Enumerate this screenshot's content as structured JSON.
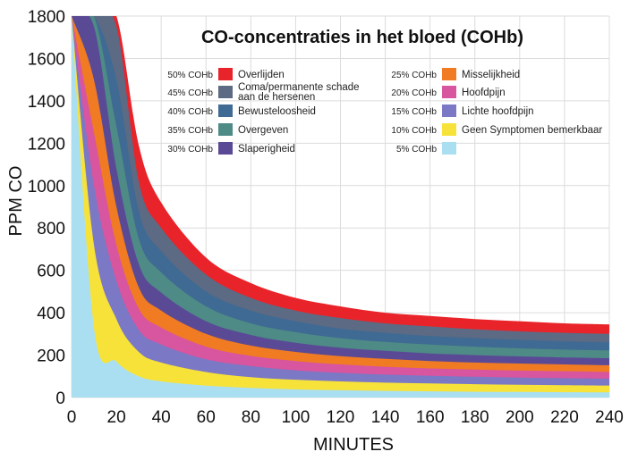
{
  "chart_data": {
    "type": "area",
    "title": "CO-concentraties in het bloed (COHb)",
    "xlabel": "MINUTES",
    "ylabel": "PPM CO",
    "xlim": [
      0,
      240
    ],
    "ylim": [
      0,
      1800
    ],
    "x_ticks": [
      0,
      20,
      40,
      60,
      80,
      100,
      120,
      140,
      160,
      180,
      200,
      220,
      240
    ],
    "y_ticks": [
      0,
      200,
      400,
      600,
      800,
      1000,
      1200,
      1400,
      1600,
      1800
    ],
    "grid": true,
    "legend_position": "top",
    "x": [
      0,
      10,
      20,
      30,
      40,
      60,
      80,
      100,
      120,
      140,
      160,
      180,
      200,
      220,
      240
    ],
    "series": [
      {
        "name": "Overlijden",
        "cohb": "50% COHb",
        "color": "#e8242a",
        "values": [
          1800,
          1800,
          1800,
          1190,
          920,
          660,
          540,
          470,
          430,
          400,
          385,
          370,
          360,
          350,
          345
        ]
      },
      {
        "name": "Coma/permanente schade aan de hersenen",
        "cohb": "45% COHb",
        "color": "#5c6a84",
        "values": [
          1800,
          1800,
          1750,
          1020,
          800,
          580,
          470,
          410,
          375,
          350,
          335,
          322,
          312,
          305,
          300
        ]
      },
      {
        "name": "Bewusteloosheid",
        "cohb": "40% COHb",
        "color": "#3f6a93",
        "values": [
          1800,
          1800,
          1500,
          880,
          690,
          500,
          410,
          360,
          325,
          305,
          290,
          280,
          272,
          265,
          260
        ]
      },
      {
        "name": "Overgeven",
        "cohb": "35% COHb",
        "color": "#4e8a86",
        "values": [
          1800,
          1800,
          1280,
          750,
          590,
          430,
          350,
          308,
          280,
          262,
          250,
          240,
          232,
          226,
          222
        ]
      },
      {
        "name": "Slaperigheid",
        "cohb": "30% COHb",
        "color": "#5a4a96",
        "values": [
          1800,
          1750,
          1080,
          630,
          495,
          360,
          295,
          258,
          235,
          220,
          208,
          200,
          194,
          189,
          185
        ]
      },
      {
        "name": "Misselijkheid",
        "cohb": "25% COHb",
        "color": "#f07b22",
        "values": [
          1800,
          1500,
          900,
          520,
          410,
          300,
          245,
          215,
          195,
          182,
          172,
          165,
          160,
          156,
          152
        ]
      },
      {
        "name": "Hoofdpijn",
        "cohb": "20% COHb",
        "color": "#d8559f",
        "values": [
          1800,
          1250,
          720,
          420,
          330,
          240,
          196,
          172,
          156,
          145,
          137,
          132,
          127,
          124,
          120
        ]
      },
      {
        "name": "Lichte hoofdpijn",
        "cohb": "15% COHb",
        "color": "#7b78c6",
        "values": [
          1800,
          1000,
          550,
          320,
          250,
          180,
          148,
          128,
          116,
          108,
          102,
          98,
          94,
          91,
          89
        ]
      },
      {
        "name": "Geen Symptomen bemerkbaar",
        "cohb": "10% COHb",
        "color": "#f7e23a",
        "values": [
          1800,
          720,
          370,
          215,
          165,
          120,
          96,
          84,
          76,
          70,
          66,
          63,
          60,
          58,
          56
        ]
      },
      {
        "name": "",
        "cohb": "5% COHb",
        "color": "#a9dff0",
        "values": [
          1800,
          330,
          170,
          100,
          76,
          56,
          45,
          38,
          34,
          31,
          29,
          27,
          26,
          25,
          24
        ]
      }
    ]
  }
}
